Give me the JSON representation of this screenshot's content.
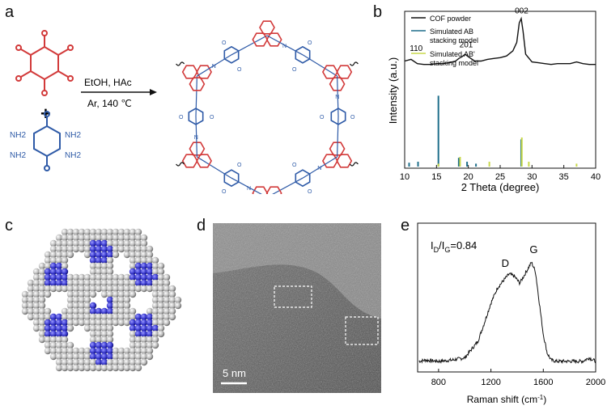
{
  "panels": {
    "a": {
      "letter": "a",
      "reagent_labels": {
        "nh2_top_left": "NH2",
        "nh2_top_right": "NH2",
        "nh2_bottom_left": "NH2",
        "nh2_bottom_right": "NH2",
        "plus": "+"
      },
      "conditions_line1": "EtOH,  HAc",
      "conditions_line2": "Ar, 140 ℃",
      "ring_atom_labels": {
        "n": "N",
        "o": "O"
      }
    },
    "b": {
      "letter": "b",
      "legend": [
        "COF powder",
        "Simulated AB stacking model",
        "Simulated AB' stacking model"
      ],
      "legend_lines": {
        "l1": "COF powder",
        "l2a": "Simulated AB",
        "l2b": "stacking model",
        "l3a": "Simulated AB'",
        "l3b": "stacking model"
      },
      "peak_labels": {
        "p110": "110",
        "p201": "201",
        "p002": "002"
      },
      "ylabel": "Intensity (a.u.)",
      "xlabel": "2 Theta (degree)",
      "xticks": [
        "10",
        "15",
        "20",
        "25",
        "30",
        "35",
        "40"
      ]
    },
    "c": {
      "letter": "c"
    },
    "d": {
      "letter": "d",
      "scale_bar": "5 nm"
    },
    "e": {
      "letter": "e",
      "annotation_main": "I",
      "annotation_sub_d": "D",
      "annotation_mid": "/I",
      "annotation_sub_g": "G",
      "annotation_value": "=0.84",
      "peak_d": "D",
      "peak_g": "G",
      "xlabel": "Raman shift (cm",
      "xlabel_sup": "-1",
      "xlabel_end": ")",
      "xticks": [
        "800",
        "1200",
        "1600",
        "2000"
      ]
    }
  },
  "colors": {
    "red": "#d23a3a",
    "blue": "#2e5aa7",
    "cof_line": "#111111",
    "sim_ab": "#1f6f8b",
    "sim_ab2": "#c8d84a",
    "sphere_blue": "#3f3fd0"
  },
  "chart_data": [
    {
      "type": "line",
      "title": "",
      "xlabel": "2 Theta (degree)",
      "ylabel": "Intensity (a.u.)",
      "xlim": [
        10,
        40
      ],
      "series": [
        {
          "name": "COF powder",
          "x": [
            10,
            11,
            12,
            13,
            14,
            15,
            16,
            17,
            18,
            18.5,
            19,
            19.5,
            20,
            21,
            22,
            23,
            24,
            25,
            26,
            27,
            27.6,
            28,
            28.3,
            28.6,
            29,
            30,
            31,
            32,
            33,
            34,
            35,
            36,
            37,
            38,
            39,
            40
          ],
          "values": [
            0.5,
            0.52,
            0.47,
            0.46,
            0.46,
            0.47,
            0.47,
            0.48,
            0.5,
            0.53,
            0.55,
            0.58,
            0.55,
            0.5,
            0.5,
            0.52,
            0.53,
            0.54,
            0.56,
            0.62,
            0.72,
            0.95,
            1.0,
            0.85,
            0.58,
            0.49,
            0.48,
            0.47,
            0.46,
            0.47,
            0.47,
            0.47,
            0.49,
            0.47,
            0.46,
            0.46
          ]
        },
        {
          "name": "Simulated AB stacking model",
          "type": "stick",
          "x": [
            10.7,
            12.1,
            15.3,
            18.5,
            19.8,
            21.2,
            28.3
          ],
          "values": [
            0.04,
            0.05,
            0.73,
            0.09,
            0.05,
            0.03,
            0.28
          ]
        },
        {
          "name": "Simulated AB' stacking model",
          "type": "stick",
          "x": [
            15.3,
            18.7,
            23.3,
            28.4,
            29.5,
            37.0
          ],
          "values": [
            0.03,
            0.1,
            0.05,
            0.3,
            0.05,
            0.03
          ]
        }
      ]
    },
    {
      "type": "line",
      "title": "",
      "xlabel": "Raman shift (cm-1)",
      "xlim": [
        640,
        2000
      ],
      "series": [
        {
          "name": "",
          "x": [
            650,
            700,
            800,
            900,
            1000,
            1100,
            1150,
            1200,
            1250,
            1300,
            1340,
            1380,
            1420,
            1450,
            1480,
            1510,
            1540,
            1570,
            1600,
            1630,
            1660,
            1700,
            1800,
            1900,
            1950,
            2000
          ],
          "values": [
            0.05,
            0.06,
            0.05,
            0.06,
            0.08,
            0.22,
            0.38,
            0.55,
            0.68,
            0.75,
            0.8,
            0.78,
            0.72,
            0.78,
            0.84,
            0.9,
            0.82,
            0.55,
            0.28,
            0.12,
            0.06,
            0.05,
            0.05,
            0.05,
            0.08,
            0.05
          ]
        }
      ]
    }
  ]
}
